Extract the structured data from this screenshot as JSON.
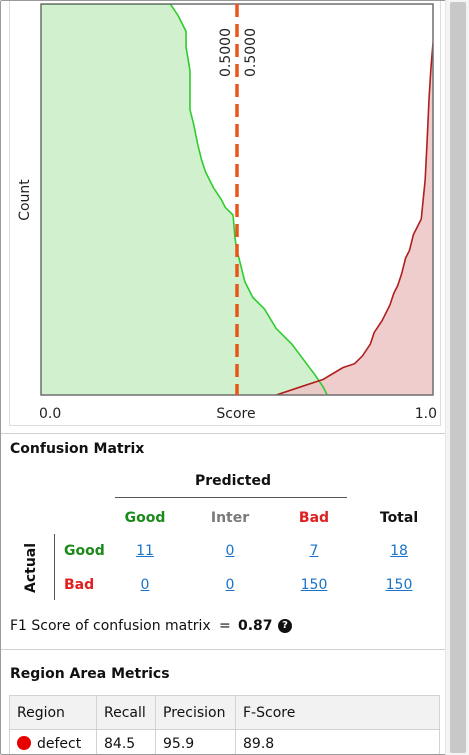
{
  "chart_data": {
    "type": "area",
    "xlabel": "Score",
    "ylabel": "Count",
    "x_tick_labels": [
      "0.0",
      "1.0"
    ],
    "xlim": [
      0.0,
      1.0
    ],
    "ylim": [
      0,
      1
    ],
    "threshold_labels": [
      "0.5000",
      "0.5000"
    ],
    "thresholds": [
      0.5,
      0.5
    ],
    "series": [
      {
        "color": "#2ecc2e",
        "fill": "#c9efc6",
        "x": [
          0.0,
          0.33,
          0.35,
          0.37,
          0.37,
          0.38,
          0.38,
          0.39,
          0.4,
          0.41,
          0.42,
          0.44,
          0.46,
          0.47,
          0.48,
          0.49,
          0.495,
          0.5,
          0.51,
          0.52,
          0.54,
          0.57,
          0.6,
          0.64,
          0.67,
          0.7,
          0.72,
          0.73
        ],
        "y": [
          1.0,
          1.0,
          0.97,
          0.93,
          0.89,
          0.83,
          0.73,
          0.69,
          0.64,
          0.6,
          0.57,
          0.53,
          0.5,
          0.48,
          0.47,
          0.46,
          0.4,
          0.37,
          0.33,
          0.29,
          0.25,
          0.22,
          0.17,
          0.13,
          0.09,
          0.05,
          0.02,
          0.0
        ]
      },
      {
        "color": "#b01e1e",
        "fill": "#ecc4c4",
        "x": [
          0.6,
          0.66,
          0.72,
          0.77,
          0.8,
          0.82,
          0.84,
          0.85,
          0.87,
          0.89,
          0.9,
          0.91,
          0.92,
          0.93,
          0.94,
          0.95,
          0.96,
          0.97,
          0.98,
          0.985,
          0.99,
          0.995,
          1.0
        ],
        "y": [
          0.0,
          0.02,
          0.04,
          0.07,
          0.08,
          0.1,
          0.13,
          0.16,
          0.19,
          0.23,
          0.26,
          0.28,
          0.31,
          0.35,
          0.37,
          0.41,
          0.43,
          0.45,
          0.55,
          0.65,
          0.76,
          0.84,
          0.9
        ]
      }
    ]
  },
  "confusion_matrix": {
    "title": "Confusion Matrix",
    "predicted_label": "Predicted",
    "actual_label": "Actual",
    "columns": [
      {
        "label": "Good",
        "color": "#1a8a1a"
      },
      {
        "label": "Inter",
        "color": "#7a7a7a"
      },
      {
        "label": "Bad",
        "color": "#e02020"
      },
      {
        "label": "Total",
        "color": "#111111"
      }
    ],
    "rows": [
      {
        "label": "Good",
        "color": "#1a8a1a",
        "cells": [
          "11",
          "0",
          "7",
          "18"
        ]
      },
      {
        "label": "Bad",
        "color": "#e02020",
        "cells": [
          "0",
          "0",
          "150",
          "150"
        ]
      }
    ],
    "f1_label": "F1 Score of confusion matrix",
    "f1_equals": "=",
    "f1_value": "0.87",
    "help_icon": "question-circle-icon"
  },
  "region_metrics": {
    "title": "Region Area Metrics",
    "headers": [
      "Region",
      "Recall",
      "Precision",
      "F-Score"
    ],
    "rows": [
      {
        "region": "defect",
        "dot_color": "#e60000",
        "recall": "84.5",
        "precision": "95.9",
        "fscore": "89.8"
      }
    ]
  }
}
